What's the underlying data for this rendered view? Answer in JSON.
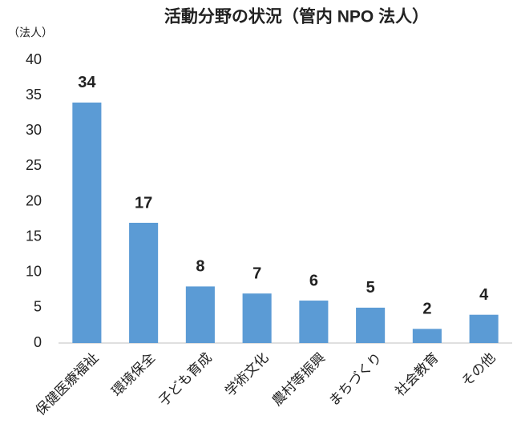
{
  "chart_data": {
    "type": "bar",
    "title": "活動分野の状況（管内 NPO 法人）",
    "y_label": "（法人）",
    "categories": [
      "保健医療福祉",
      "環境保全",
      "子ども育成",
      "学術文化",
      "農村等振興",
      "まちづくり",
      "社会教育",
      "その他"
    ],
    "values": [
      34,
      17,
      8,
      7,
      6,
      5,
      2,
      4
    ],
    "color": "#5b9bd5",
    "ylim": [
      0,
      40
    ],
    "yticks": [
      0,
      5,
      10,
      15,
      20,
      25,
      30,
      35,
      40
    ],
    "grid": false
  }
}
